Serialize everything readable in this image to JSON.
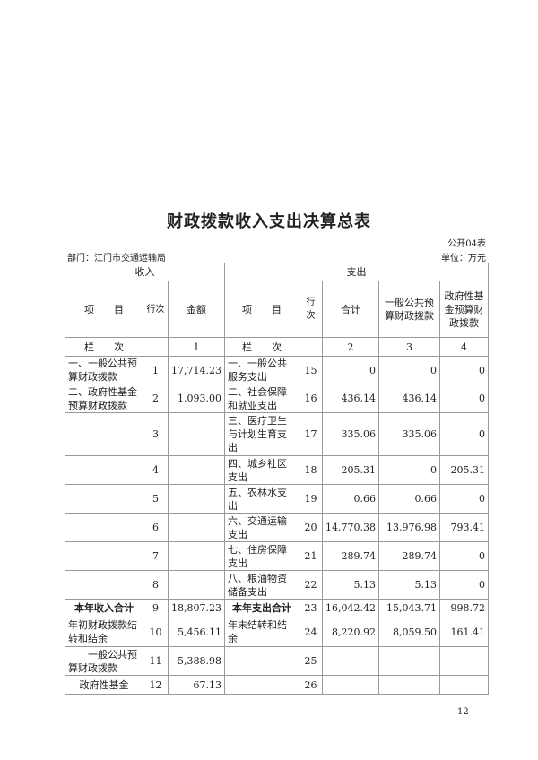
{
  "title": "财政拨款收入支出决算总表",
  "form_code": "公开04表",
  "department": "部门：江门市交通运输局",
  "unit": "单位：万元",
  "header": {
    "income": "收入",
    "expense": "支出",
    "item": "项　　目",
    "line_no": "行次",
    "amount": "金额",
    "total": "合计",
    "general_budget": "一般公共预算财政拨款",
    "gov_fund": "政府性基金预算财政拨款",
    "column_label": "栏　　次",
    "col1": "1",
    "col2": "2",
    "col3": "3",
    "col4": "4"
  },
  "rows": [
    {
      "in_item": "一、一般公共预算财政拨款",
      "in_no": "1",
      "in_amt": "17,714.23",
      "ex_item": "一、一般公共服务支出",
      "ex_no": "15",
      "total": "0",
      "general": "0",
      "fund": "0"
    },
    {
      "in_item": "二、政府性基金预算财政拨款",
      "in_no": "2",
      "in_amt": "1,093.00",
      "ex_item": "二、社会保障和就业支出",
      "ex_no": "16",
      "total": "436.14",
      "general": "436.14",
      "fund": "0"
    },
    {
      "in_item": "",
      "in_no": "3",
      "in_amt": "",
      "ex_item": "三、医疗卫生与计划生育支出",
      "ex_no": "17",
      "total": "335.06",
      "general": "335.06",
      "fund": "0"
    },
    {
      "in_item": "",
      "in_no": "4",
      "in_amt": "",
      "ex_item": "四、城乡社区支出",
      "ex_no": "18",
      "total": "205.31",
      "general": "0",
      "fund": "205.31"
    },
    {
      "in_item": "",
      "in_no": "5",
      "in_amt": "",
      "ex_item": "五、农林水支出",
      "ex_no": "19",
      "total": "0.66",
      "general": "0.66",
      "fund": "0"
    },
    {
      "in_item": "",
      "in_no": "6",
      "in_amt": "",
      "ex_item": "六、交通运输支出",
      "ex_no": "20",
      "total": "14,770.38",
      "general": "13,976.98",
      "fund": "793.41"
    },
    {
      "in_item": "",
      "in_no": "7",
      "in_amt": "",
      "ex_item": "七、住房保障支出",
      "ex_no": "21",
      "total": "289.74",
      "general": "289.74",
      "fund": "0"
    },
    {
      "in_item": "",
      "in_no": "8",
      "in_amt": "",
      "ex_item": "八、粮油物资储备支出",
      "ex_no": "22",
      "total": "5.13",
      "general": "5.13",
      "fund": "0"
    },
    {
      "in_item": "本年收入合计",
      "in_no": "9",
      "in_amt": "18,807.23",
      "ex_item": "本年支出合计",
      "ex_no": "23",
      "total": "16,042.42",
      "general": "15,043.71",
      "fund": "998.72"
    },
    {
      "in_item": "年初财政拨款结转和结余",
      "in_no": "10",
      "in_amt": "5,456.11",
      "ex_item": "年末结转和结余",
      "ex_no": "24",
      "total": "8,220.92",
      "general": "8,059.50",
      "fund": "161.41"
    },
    {
      "in_item": "一般公共预算财政拨款",
      "in_no": "11",
      "in_amt": "5,388.98",
      "ex_item": "",
      "ex_no": "25",
      "total": "",
      "general": "",
      "fund": ""
    },
    {
      "in_item": "政府性基金",
      "in_no": "12",
      "in_amt": "67.13",
      "ex_item": "",
      "ex_no": "26",
      "total": "",
      "general": "",
      "fund": ""
    }
  ],
  "page_number": "12"
}
